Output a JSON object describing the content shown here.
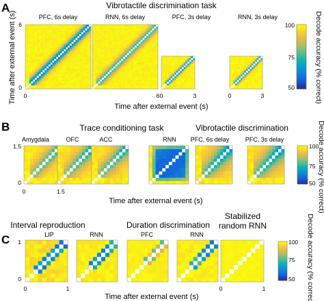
{
  "colors": {
    "colormap": "parula",
    "diagonal": "#ffffff",
    "background": "#ffffff"
  },
  "chart_data": [
    {
      "type": "heatmap",
      "panel_label": "A",
      "title": "Vibrotactile discrimination task",
      "xlabel": "Time after external event (s)",
      "ylabel": "Time after external event (s)",
      "colorbar": {
        "label": "Decode accuracy (% correct)",
        "range": [
          50,
          100
        ],
        "ticks": [
          "100",
          "75",
          "50"
        ]
      },
      "subplots": [
        {
          "title": "PFC, 6s delay",
          "duration": 6,
          "x_ticks": [
            "0",
            "6"
          ],
          "y_ticks": [
            "6",
            "0"
          ]
        },
        {
          "title": "RNN, 6s delay",
          "duration": 6,
          "x_ticks": [
            "0",
            "6"
          ],
          "y_ticks": []
        },
        {
          "title": "PFC, 3s delay",
          "duration": 3,
          "x_ticks": [
            "0",
            "3"
          ],
          "y_ticks": []
        },
        {
          "title": "RNN, 3s delay",
          "duration": 3,
          "x_ticks": [
            "0",
            "3"
          ],
          "y_ticks": []
        }
      ]
    },
    {
      "type": "heatmap",
      "panel_label": "B",
      "group_titles": [
        "Trace conditioning task",
        "Vibrotactile discrimination"
      ],
      "xlabel": "Time after external event (s)",
      "ylabel": "",
      "colorbar": {
        "label": "Decode accuracy (% correct)",
        "range": [
          50,
          100
        ],
        "ticks": [
          "100",
          "75",
          "50"
        ]
      },
      "subplots": [
        {
          "title": "Amygdala",
          "duration": 1.5,
          "x_ticks": [
            "0",
            "1.5"
          ],
          "y_ticks": [
            "1.5",
            "0"
          ]
        },
        {
          "title": "OFC",
          "duration": 1.5,
          "x_ticks": [],
          "y_ticks": []
        },
        {
          "title": "ACC",
          "duration": 1.5,
          "x_ticks": [],
          "y_ticks": []
        },
        {
          "title": "RNN",
          "duration": 1.5,
          "x_ticks": [],
          "y_ticks": []
        },
        {
          "title": "PFC, 6s delay",
          "duration": 1.5,
          "x_ticks": [],
          "y_ticks": []
        },
        {
          "title": "PFC, 3s delay",
          "duration": 1.5,
          "x_ticks": [],
          "y_ticks": []
        }
      ]
    },
    {
      "type": "heatmap",
      "panel_label": "C",
      "group_titles": [
        "Interval reproduction",
        "Duration discrimination",
        "Stabilized random RNN"
      ],
      "xlabel": "Time after external event (s)",
      "ylabel": "",
      "colorbar": {
        "label": "Decode accuracy (% correct)",
        "range": [
          50,
          100
        ],
        "ticks": [
          "100",
          "75",
          "50"
        ]
      },
      "subplots": [
        {
          "title": "LIP",
          "duration": 1,
          "x_ticks": [
            "0",
            "1"
          ],
          "y_ticks": [
            "1",
            "0"
          ]
        },
        {
          "title": "RNN",
          "duration": 1,
          "x_ticks": [],
          "y_ticks": []
        },
        {
          "title": "PFC",
          "duration": 1,
          "x_ticks": [],
          "y_ticks": []
        },
        {
          "title": "RNN",
          "duration": 1,
          "x_ticks": [],
          "y_ticks": []
        },
        {
          "title": "",
          "duration": 1,
          "x_ticks": [
            "0",
            "1"
          ],
          "y_ticks": []
        }
      ]
    }
  ]
}
